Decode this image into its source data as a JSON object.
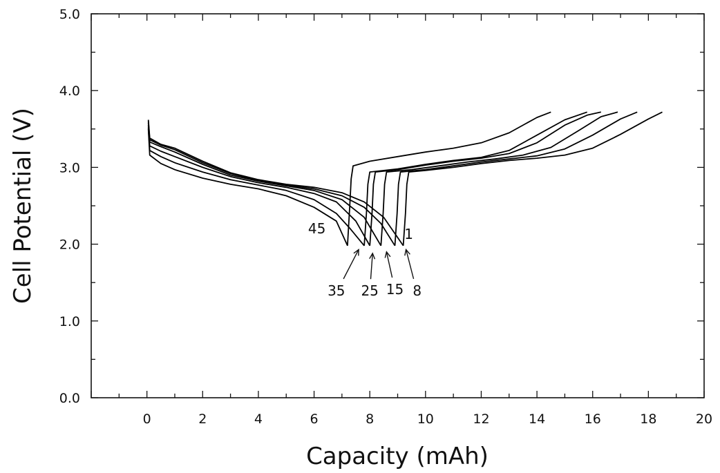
{
  "chart_data": {
    "type": "line",
    "title": "",
    "xlabel": "Capacity (mAh)",
    "ylabel": "Cell Potential (V)",
    "xlim": [
      -2,
      20
    ],
    "ylim": [
      0,
      5
    ],
    "x_ticks": [
      0,
      2,
      4,
      6,
      8,
      10,
      12,
      14,
      16,
      18,
      20
    ],
    "x_tick_labels": [
      "0",
      "2",
      "4",
      "6",
      "8",
      "10",
      "12",
      "14",
      "16",
      "18",
      "20"
    ],
    "y_ticks": [
      0,
      1,
      2,
      3,
      4,
      5
    ],
    "y_tick_labels": [
      "0.0",
      "1.0",
      "2.0",
      "3.0",
      "4.0",
      "5.0"
    ],
    "grid": false,
    "legend": "none",
    "line_color": "#000000",
    "series": [
      {
        "discharge": [
          [
            0.05,
            3.62
          ],
          [
            0.1,
            3.38
          ],
          [
            0.5,
            3.3
          ],
          [
            1.0,
            3.25
          ],
          [
            2.0,
            3.08
          ],
          [
            3.0,
            2.93
          ],
          [
            4.0,
            2.84
          ],
          [
            5.0,
            2.78
          ],
          [
            6.0,
            2.74
          ],
          [
            7.0,
            2.67
          ],
          [
            7.8,
            2.55
          ],
          [
            8.5,
            2.35
          ],
          [
            9.2,
            1.98
          ]
        ],
        "charge": [
          [
            9.2,
            1.98
          ],
          [
            9.28,
            2.4
          ],
          [
            9.33,
            2.78
          ],
          [
            9.4,
            2.94
          ],
          [
            10.0,
            2.96
          ],
          [
            11.0,
            3.0
          ],
          [
            12.0,
            3.05
          ],
          [
            13.0,
            3.09
          ],
          [
            14.0,
            3.12
          ],
          [
            15.0,
            3.16
          ],
          [
            16.0,
            3.25
          ],
          [
            17.0,
            3.43
          ],
          [
            18.0,
            3.63
          ],
          [
            18.5,
            3.72
          ]
        ]
      },
      {
        "discharge": [
          [
            0.05,
            3.6
          ],
          [
            0.1,
            3.36
          ],
          [
            0.5,
            3.29
          ],
          [
            1.0,
            3.23
          ],
          [
            2.0,
            3.06
          ],
          [
            3.0,
            2.92
          ],
          [
            4.0,
            2.83
          ],
          [
            5.0,
            2.77
          ],
          [
            6.0,
            2.72
          ],
          [
            7.0,
            2.63
          ],
          [
            7.8,
            2.48
          ],
          [
            8.4,
            2.27
          ],
          [
            8.9,
            1.98
          ]
        ],
        "charge": [
          [
            8.9,
            1.98
          ],
          [
            8.98,
            2.4
          ],
          [
            9.03,
            2.78
          ],
          [
            9.1,
            2.94
          ],
          [
            10.0,
            2.97
          ],
          [
            11.0,
            3.02
          ],
          [
            12.0,
            3.07
          ],
          [
            13.0,
            3.11
          ],
          [
            14.0,
            3.15
          ],
          [
            15.0,
            3.24
          ],
          [
            16.0,
            3.42
          ],
          [
            17.0,
            3.63
          ],
          [
            17.6,
            3.72
          ]
        ]
      },
      {
        "discharge": [
          [
            0.05,
            3.58
          ],
          [
            0.1,
            3.33
          ],
          [
            0.5,
            3.27
          ],
          [
            1.0,
            3.2
          ],
          [
            2.0,
            3.04
          ],
          [
            3.0,
            2.9
          ],
          [
            4.0,
            2.82
          ],
          [
            5.0,
            2.76
          ],
          [
            6.0,
            2.7
          ],
          [
            7.0,
            2.58
          ],
          [
            7.8,
            2.35
          ],
          [
            8.4,
            1.98
          ]
        ],
        "charge": [
          [
            8.4,
            1.98
          ],
          [
            8.48,
            2.4
          ],
          [
            8.53,
            2.78
          ],
          [
            8.6,
            2.94
          ],
          [
            9.5,
            2.97
          ],
          [
            10.5,
            3.02
          ],
          [
            11.5,
            3.07
          ],
          [
            12.5,
            3.11
          ],
          [
            13.5,
            3.16
          ],
          [
            14.5,
            3.26
          ],
          [
            15.5,
            3.48
          ],
          [
            16.3,
            3.66
          ],
          [
            16.9,
            3.72
          ]
        ]
      },
      {
        "discharge": [
          [
            0.05,
            3.55
          ],
          [
            0.1,
            3.28
          ],
          [
            0.5,
            3.21
          ],
          [
            1.0,
            3.14
          ],
          [
            2.0,
            3.0
          ],
          [
            3.0,
            2.88
          ],
          [
            4.0,
            2.8
          ],
          [
            5.0,
            2.74
          ],
          [
            6.0,
            2.66
          ],
          [
            6.8,
            2.55
          ],
          [
            7.5,
            2.3
          ],
          [
            8.0,
            1.98
          ]
        ],
        "charge": [
          [
            8.0,
            1.98
          ],
          [
            8.08,
            2.4
          ],
          [
            8.13,
            2.78
          ],
          [
            8.2,
            2.94
          ],
          [
            9.0,
            2.97
          ],
          [
            10.0,
            3.03
          ],
          [
            11.0,
            3.08
          ],
          [
            12.0,
            3.12
          ],
          [
            13.0,
            3.18
          ],
          [
            14.0,
            3.32
          ],
          [
            15.0,
            3.55
          ],
          [
            15.8,
            3.68
          ],
          [
            16.3,
            3.72
          ]
        ]
      },
      {
        "discharge": [
          [
            0.05,
            3.52
          ],
          [
            0.1,
            3.22
          ],
          [
            0.5,
            3.14
          ],
          [
            1.0,
            3.06
          ],
          [
            2.0,
            2.94
          ],
          [
            3.0,
            2.84
          ],
          [
            4.0,
            2.77
          ],
          [
            5.0,
            2.7
          ],
          [
            6.0,
            2.58
          ],
          [
            6.8,
            2.4
          ],
          [
            7.3,
            2.2
          ],
          [
            7.8,
            1.98
          ]
        ],
        "charge": [
          [
            7.8,
            1.98
          ],
          [
            7.88,
            2.4
          ],
          [
            7.93,
            2.78
          ],
          [
            8.0,
            2.94
          ],
          [
            9.0,
            2.98
          ],
          [
            10.0,
            3.04
          ],
          [
            11.0,
            3.09
          ],
          [
            12.0,
            3.13
          ],
          [
            13.0,
            3.22
          ],
          [
            14.0,
            3.42
          ],
          [
            15.0,
            3.62
          ],
          [
            15.8,
            3.72
          ]
        ]
      },
      {
        "discharge": [
          [
            0.05,
            3.5
          ],
          [
            0.1,
            3.16
          ],
          [
            0.5,
            3.05
          ],
          [
            1.0,
            2.97
          ],
          [
            2.0,
            2.86
          ],
          [
            3.0,
            2.78
          ],
          [
            4.0,
            2.72
          ],
          [
            5.0,
            2.63
          ],
          [
            6.0,
            2.48
          ],
          [
            6.8,
            2.3
          ],
          [
            7.2,
            1.98
          ]
        ],
        "charge": [
          [
            7.2,
            1.98
          ],
          [
            7.28,
            2.5
          ],
          [
            7.33,
            2.85
          ],
          [
            7.4,
            3.02
          ],
          [
            8.0,
            3.08
          ],
          [
            9.0,
            3.14
          ],
          [
            10.0,
            3.2
          ],
          [
            11.0,
            3.25
          ],
          [
            12.0,
            3.32
          ],
          [
            13.0,
            3.45
          ],
          [
            14.0,
            3.65
          ],
          [
            14.5,
            3.72
          ]
        ]
      }
    ],
    "annotations": [
      {
        "text": "45",
        "x": 6.1,
        "y": 2.14
      },
      {
        "text": "1",
        "x": 9.4,
        "y": 2.07
      },
      {
        "text": "35",
        "x": 6.8,
        "y": 1.33,
        "arrow_to": [
          7.6,
          1.93
        ]
      },
      {
        "text": "25",
        "x": 8.0,
        "y": 1.33,
        "arrow_to": [
          8.1,
          1.88
        ]
      },
      {
        "text": "15",
        "x": 8.9,
        "y": 1.35,
        "arrow_to": [
          8.6,
          1.9
        ]
      },
      {
        "text": "8",
        "x": 9.7,
        "y": 1.33,
        "arrow_to": [
          9.3,
          1.93
        ]
      }
    ]
  }
}
